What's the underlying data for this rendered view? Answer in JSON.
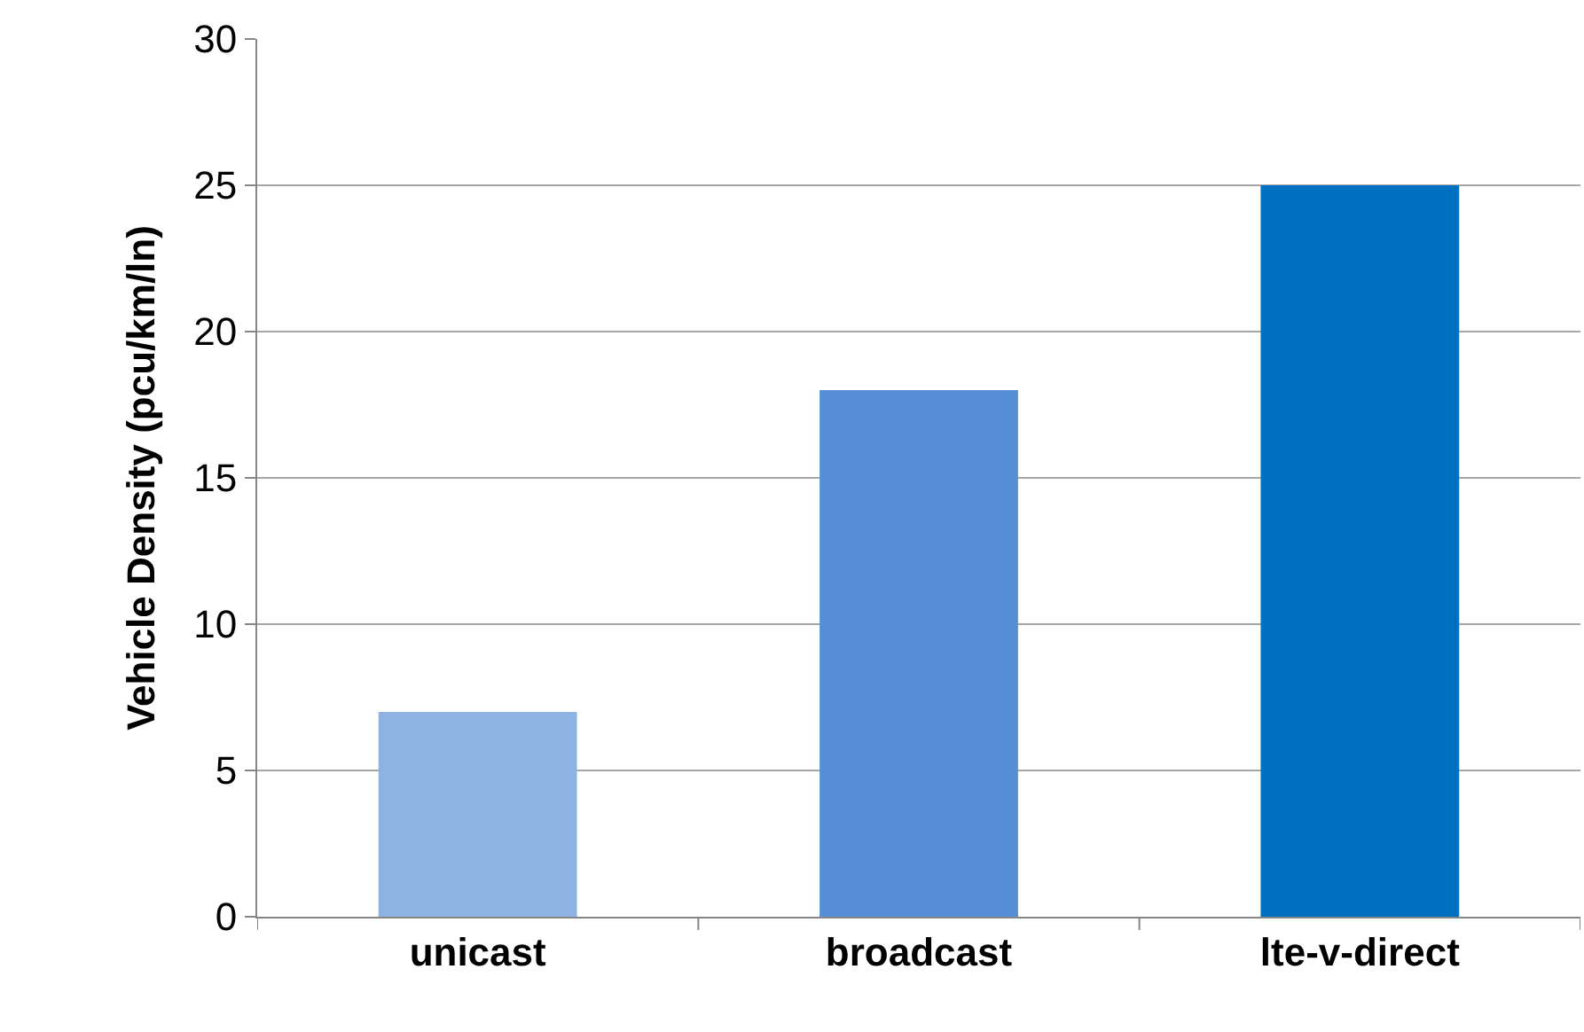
{
  "chart_data": {
    "type": "bar",
    "ylabel": "Vehicle Density (pcu/km/ln)",
    "categories": [
      "unicast",
      "broadcast",
      "lte-v-direct"
    ],
    "values": [
      7,
      18,
      25
    ],
    "colors": [
      "#8db3e2",
      "#558ed5",
      "#0070c0"
    ],
    "ylim": [
      0,
      30
    ],
    "yticks": [
      0,
      5,
      10,
      15,
      20,
      25,
      30
    ],
    "grid": "y"
  }
}
